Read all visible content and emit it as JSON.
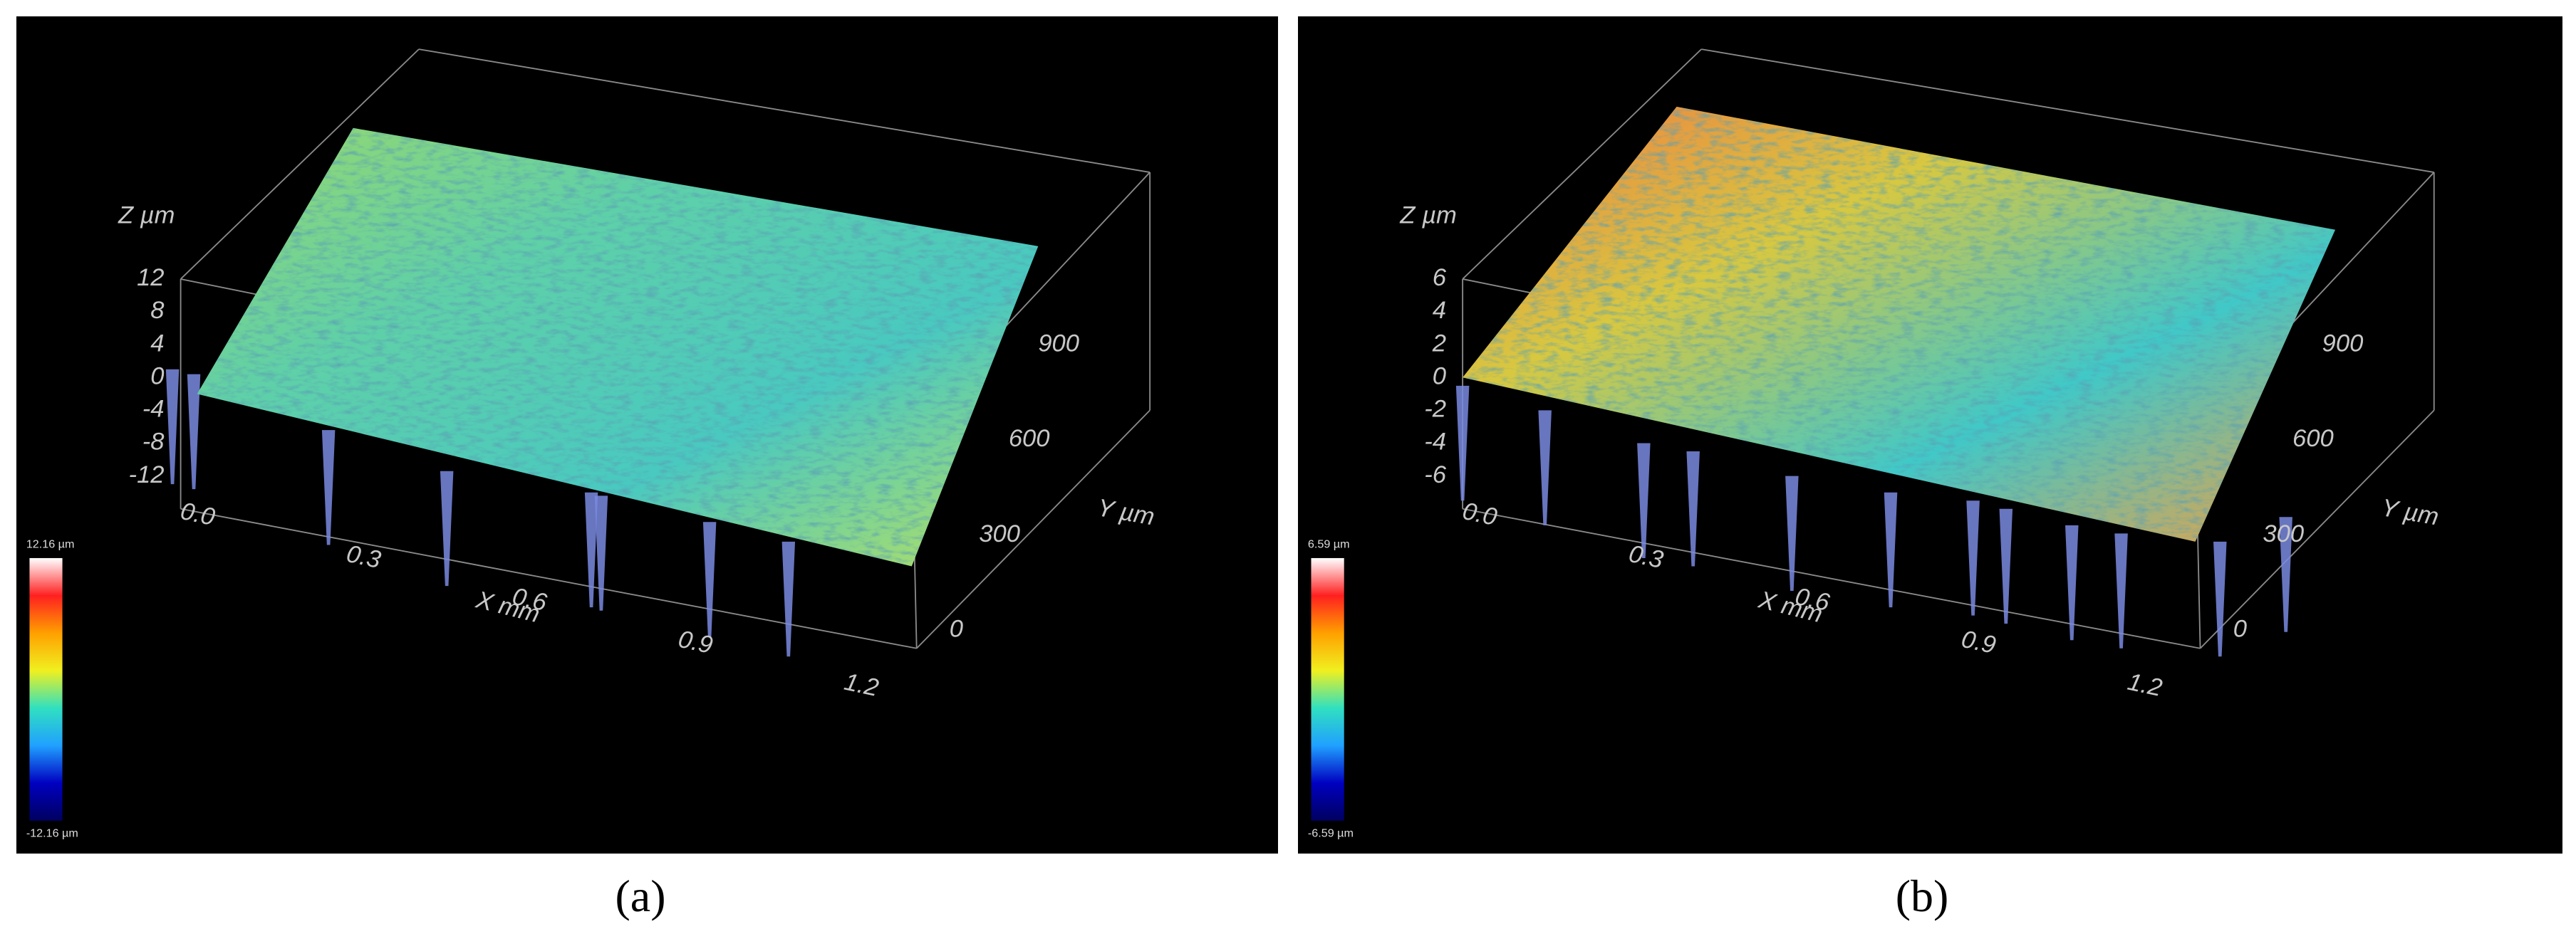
{
  "panels": [
    {
      "label": "(a)",
      "z_axis_title": "Z µm",
      "z_ticks": [
        "12",
        "8",
        "4",
        "0",
        "-4",
        "-8",
        "-12"
      ],
      "x_axis_title": "X mm",
      "x_ticks": [
        "0.0",
        "0.3",
        "0.6",
        "0.9",
        "1.2"
      ],
      "y_axis_title": "Y µm",
      "y_ticks": [
        "900",
        "600",
        "300",
        "0"
      ],
      "colorbar_max": "12.16 µm",
      "colorbar_min": "-12.16 µm"
    },
    {
      "label": "(b)",
      "z_axis_title": "Z µm",
      "z_ticks": [
        "6",
        "4",
        "2",
        "0",
        "-2",
        "-4",
        "-6"
      ],
      "x_axis_title": "X mm",
      "x_ticks": [
        "0.0",
        "0.3",
        "0.6",
        "0.9",
        "1.2"
      ],
      "y_axis_title": "Y µm",
      "y_ticks": [
        "900",
        "600",
        "300",
        "0"
      ],
      "colorbar_max": "6.59 µm",
      "colorbar_min": "-6.59 µm"
    }
  ]
}
